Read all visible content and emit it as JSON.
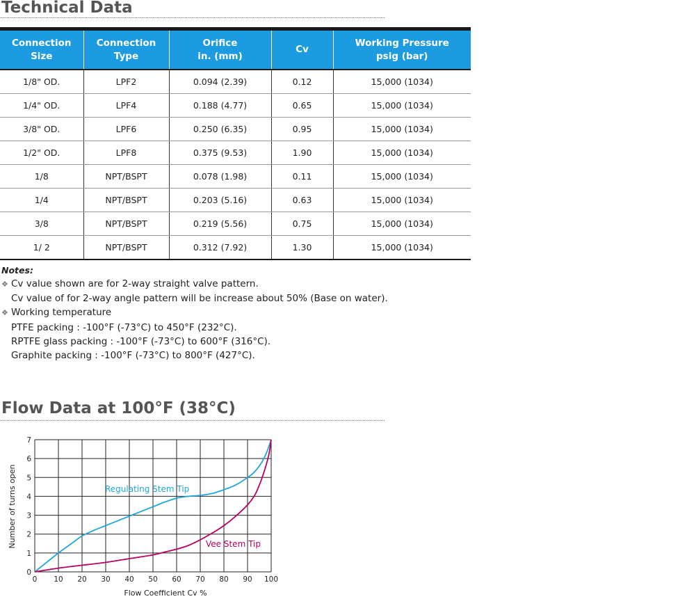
{
  "technical_data": {
    "title": "Technical Data",
    "columns": [
      {
        "line1": "Connection",
        "line2": "Size"
      },
      {
        "line1": "Connection",
        "line2": "Type"
      },
      {
        "line1": "Orifice",
        "line2": "in. (mm)"
      },
      {
        "line1": "Cv",
        "line2": ""
      },
      {
        "line1": "Working Pressure",
        "line2": "psig (bar)"
      }
    ],
    "rows": [
      [
        "1/8\" OD.",
        "LPF2",
        "0.094 (2.39)",
        "0.12",
        "15,000 (1034)"
      ],
      [
        "1/4\" OD.",
        "LPF4",
        "0.188 (4.77)",
        "0.65",
        "15,000 (1034)"
      ],
      [
        "3/8\" OD.",
        "LPF6",
        "0.250 (6.35)",
        "0.95",
        "15,000 (1034)"
      ],
      [
        "1/2\" OD.",
        "LPF8",
        "0.375 (9.53)",
        "1.90",
        "15,000 (1034)"
      ],
      [
        "1/8",
        "NPT/BSPT",
        "0.078 (1.98)",
        "0.11",
        "15,000 (1034)"
      ],
      [
        "1/4",
        "NPT/BSPT",
        "0.203 (5.16)",
        "0.63",
        "15,000 (1034)"
      ],
      [
        "3/8",
        "NPT/BSPT",
        "0.219 (5.56)",
        "0.75",
        "15,000 (1034)"
      ],
      [
        "1/ 2",
        "NPT/BSPT",
        "0.312 (7.92)",
        "1.30",
        "15,000 (1034)"
      ]
    ]
  },
  "notes": {
    "heading": "Notes:",
    "bullet_icon": "diamond-bullet-icon",
    "line1": "Cv value shown are for 2-way straight valve pattern.",
    "line2": "Cv value of  for 2-way angle pattern will be increase about 50% (Base on water).",
    "line3": "Working temperature",
    "line4": "PTFE packing : -100°F (-73°C) to 450°F (232°C).",
    "line5": "RPTFE glass packing : -100°F (-73°C) to 600°F (316°C).",
    "line6": "Graphite packing : -100°F (-73°C) to 800°F (427°C)."
  },
  "flow_data": {
    "title": "Flow Data at 100°F (38°C)"
  },
  "chart_data": {
    "type": "line",
    "xlabel": "Flow Coefficient Cv %",
    "ylabel": "Number of turns open",
    "xlim": [
      0,
      100
    ],
    "ylim": [
      0,
      7
    ],
    "x_ticks": [
      0,
      10,
      20,
      30,
      40,
      50,
      60,
      70,
      80,
      90,
      100
    ],
    "y_ticks": [
      0,
      1,
      2,
      3,
      4,
      5,
      6,
      7
    ],
    "grid": true,
    "legend": "none",
    "series": [
      {
        "name": "Regulating Stem Tip",
        "color": "#1ea8d8",
        "x": [
          0,
          5,
          10,
          15,
          20,
          25,
          30,
          35,
          40,
          45,
          50,
          55,
          60,
          65,
          70,
          75,
          80,
          85,
          90,
          93,
          96,
          98,
          100
        ],
        "y": [
          0,
          0.5,
          1.0,
          1.45,
          1.9,
          2.2,
          2.45,
          2.7,
          2.95,
          3.2,
          3.45,
          3.7,
          3.9,
          4.0,
          4.05,
          4.15,
          4.35,
          4.6,
          5.0,
          5.3,
          5.8,
          6.3,
          7.0
        ]
      },
      {
        "name": "Vee Stem Tip",
        "color": "#b8005f",
        "x": [
          0,
          10,
          20,
          30,
          40,
          50,
          55,
          60,
          65,
          70,
          75,
          80,
          85,
          90,
          93,
          95,
          97,
          99,
          100
        ],
        "y": [
          0,
          0.2,
          0.35,
          0.5,
          0.7,
          0.9,
          1.05,
          1.2,
          1.4,
          1.7,
          2.05,
          2.45,
          2.95,
          3.55,
          4.05,
          4.6,
          5.3,
          6.2,
          7.0
        ]
      }
    ]
  }
}
